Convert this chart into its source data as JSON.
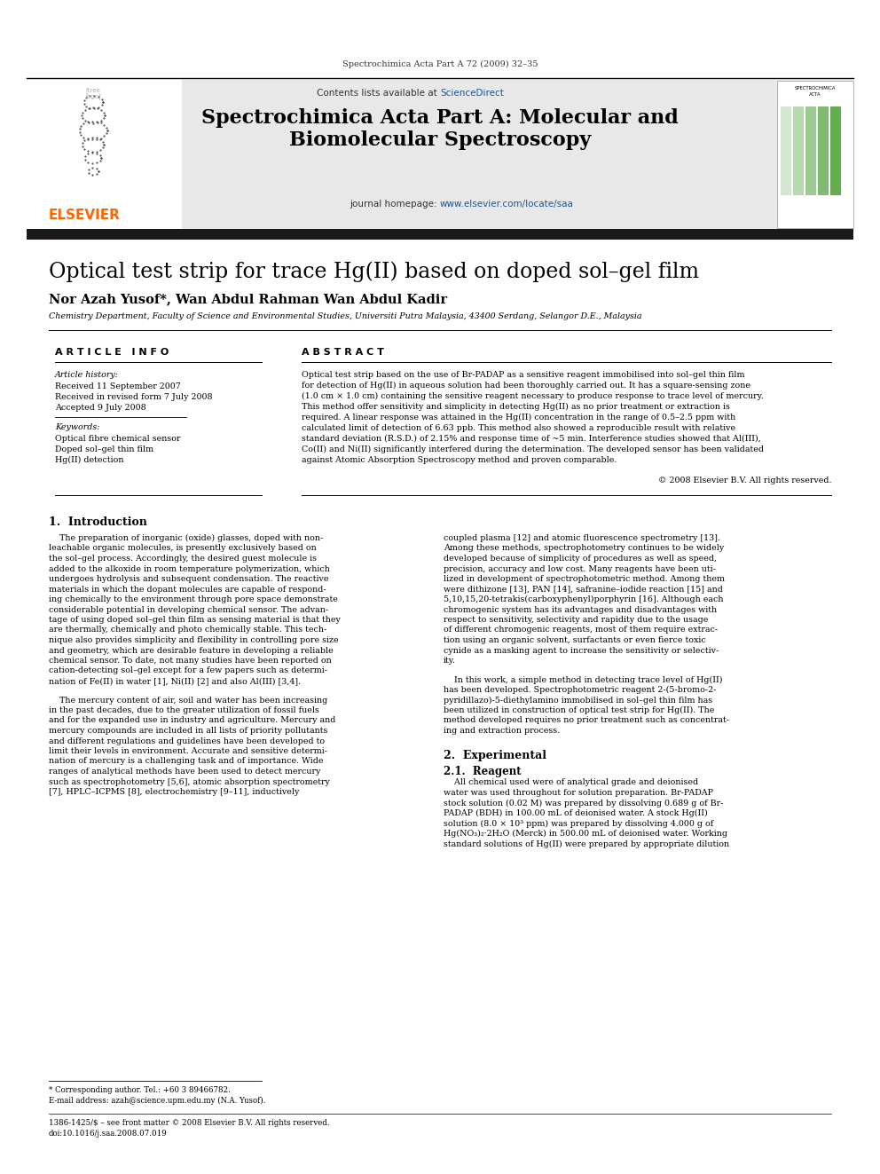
{
  "page_header": "Spectrochimica Acta Part A 72 (2009) 32–35",
  "journal_name_line1": "Spectrochimica Acta Part A: Molecular and",
  "journal_name_line2": "Biomolecular Spectroscopy",
  "contents_line1": "Contents lists available at ",
  "contents_link": "ScienceDirect",
  "homepage_label": "journal homepage: ",
  "homepage_link": "www.elsevier.com/locate/saa",
  "paper_title": "Optical test strip for trace Hg(II) based on doped sol–gel film",
  "authors": "Nor Azah Yusof*, Wan Abdul Rahman Wan Abdul Kadir",
  "affiliation": "Chemistry Department, Faculty of Science and Environmental Studies, Universiti Putra Malaysia, 43400 Serdang, Selangor D.E., Malaysia",
  "article_info_header": "A R T I C L E   I N F O",
  "abstract_header": "A B S T R A C T",
  "article_history_label": "Article history:",
  "received1": "Received 11 September 2007",
  "received2": "Received in revised form 7 July 2008",
  "accepted": "Accepted 9 July 2008",
  "keywords_label": "Keywords:",
  "keyword1": "Optical fibre chemical sensor",
  "keyword2": "Doped sol–gel thin film",
  "keyword3": "Hg(II) detection",
  "copyright": "© 2008 Elsevier B.V. All rights reserved.",
  "section1_header": "1.  Introduction",
  "section2_header": "2.  Experimental",
  "section21_header": "2.1.  Reagent",
  "footer_line1": "1386-1425/$ – see front matter © 2008 Elsevier B.V. All rights reserved.",
  "footer_line2": "doi:10.1016/j.saa.2008.07.019",
  "footer_note": "* Corresponding author. Tel.: +60 3 89466782.",
  "footer_email": "E-mail address: azah@science.upm.edu.my (N.A. Yusof).",
  "bg_color": "#ffffff",
  "header_bg": "#e0e0e0",
  "dark_bar_color": "#1a1a1a",
  "link_color": "#1a5699",
  "elsevier_color": "#ff6600",
  "cover_green1": "#d4e6d0",
  "cover_green2": "#b8d8b0",
  "cover_green3": "#9cca90",
  "cover_green4": "#80bc70",
  "cover_green5": "#64ae50"
}
